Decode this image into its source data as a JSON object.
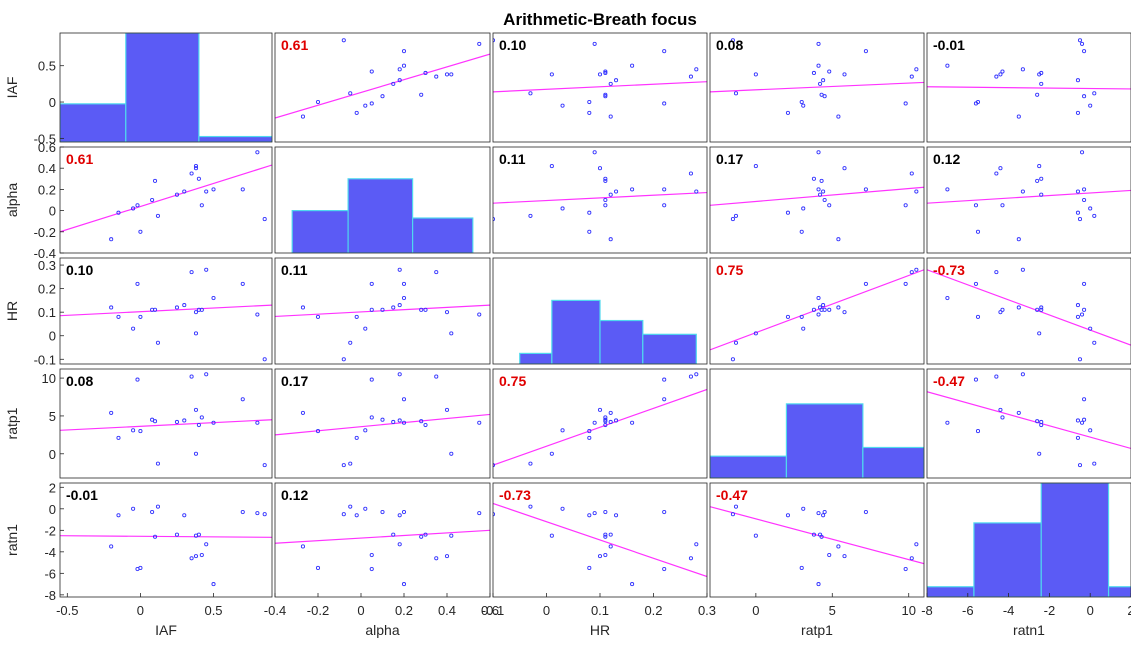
{
  "chart_data": {
    "type": "scatter_matrix",
    "title": "Arithmetic-Breath focus",
    "variables": [
      "IAF",
      "alpha",
      "HR",
      "ratp1",
      "ratn1"
    ],
    "x_ranges": [
      [
        -0.55,
        0.9
      ],
      [
        -0.4,
        0.6
      ],
      [
        -0.1,
        0.3
      ],
      [
        -3,
        11
      ],
      [
        -8,
        2
      ]
    ],
    "y_ranges": [
      [
        -0.55,
        0.95
      ],
      [
        -0.4,
        0.6
      ],
      [
        -0.12,
        0.33
      ],
      [
        -3.2,
        11.2
      ],
      [
        -8.2,
        2.4
      ]
    ],
    "x_ticks": [
      [
        -0.5,
        0,
        0.5
      ],
      [
        -0.4,
        -0.2,
        0,
        0.2,
        0.4,
        0.6
      ],
      [
        -0.1,
        0,
        0.1,
        0.2,
        0.3
      ],
      [
        0,
        5,
        10
      ],
      [
        -8,
        -6,
        -4,
        -2,
        0,
        2
      ]
    ],
    "x_tick_labels": [
      [
        "-0.5",
        "0",
        "0.5"
      ],
      [
        "-0.4",
        "-0.2",
        "0",
        "0.2",
        "0.4",
        "0.6"
      ],
      [
        "-0.1",
        "0",
        "0.1",
        "0.2",
        "0.3"
      ],
      [
        "0",
        "5",
        "10"
      ],
      [
        "-8",
        "-6",
        "-4",
        "-2",
        "0",
        "2"
      ]
    ],
    "y_ticks": [
      [
        -0.5,
        0,
        0.5
      ],
      [
        -0.4,
        -0.2,
        0,
        0.2,
        0.4,
        0.6
      ],
      [
        -0.1,
        0,
        0.1,
        0.2,
        0.3
      ],
      [
        0,
        5,
        10
      ],
      [
        -8,
        -6,
        -4,
        -2,
        0,
        2
      ]
    ],
    "y_tick_labels": [
      [
        "-0.5",
        "0",
        "0.5"
      ],
      [
        "-0.4",
        "-0.2",
        "0",
        "0.2",
        "0.4",
        "0.6"
      ],
      [
        "-0.1",
        "0",
        "0.1",
        "0.2",
        "0.3"
      ],
      [
        "0",
        "5",
        "10"
      ],
      [
        "-8",
        "-6",
        "-4",
        "-2",
        "0",
        "2"
      ]
    ],
    "correlations": [
      [
        null,
        "0.61",
        "0.10",
        "0.08",
        "-0.01"
      ],
      [
        "0.61",
        null,
        "0.11",
        "0.17",
        "0.12"
      ],
      [
        "0.10",
        "0.11",
        null,
        "0.75",
        "-0.73"
      ],
      [
        "0.08",
        "0.17",
        "0.75",
        null,
        "-0.47"
      ],
      [
        "-0.01",
        "0.12",
        "-0.73",
        "-0.47",
        null
      ]
    ],
    "significant": [
      [
        false,
        true,
        false,
        false,
        false
      ],
      [
        true,
        false,
        false,
        false,
        false
      ],
      [
        false,
        false,
        false,
        true,
        true
      ],
      [
        false,
        false,
        true,
        false,
        true
      ],
      [
        false,
        false,
        true,
        true,
        false
      ]
    ],
    "histograms": [
      {
        "edges": [
          -0.55,
          -0.1,
          0.4,
          0.9
        ],
        "fractions": [
          0.35,
          1.0,
          0.05
        ]
      },
      {
        "edges": [
          -0.32,
          -0.06,
          0.24,
          0.52
        ],
        "fractions": [
          0.4,
          0.7,
          0.33
        ]
      },
      {
        "edges": [
          -0.05,
          0.01,
          0.1,
          0.18,
          0.28
        ],
        "fractions": [
          0.1,
          0.6,
          0.41,
          0.28
        ]
      },
      {
        "edges": [
          -3,
          2,
          7,
          11,
          12
        ],
        "fractions": [
          0.2,
          0.68,
          0.28,
          0.04
        ]
      },
      {
        "edges": [
          -8.2,
          -5.7,
          -2.4,
          0.9,
          2.4
        ],
        "fractions": [
          0.09,
          0.65,
          1.0,
          0.09
        ]
      }
    ],
    "samples": [
      {
        "IAF": -0.2,
        "alpha": -0.27,
        "HR": 0.12,
        "ratp1": 5.4,
        "ratn1": -3.5
      },
      {
        "IAF": -0.15,
        "alpha": -0.02,
        "HR": 0.08,
        "ratp1": 2.1,
        "ratn1": -0.6
      },
      {
        "IAF": -0.05,
        "alpha": 0.02,
        "HR": 0.03,
        "ratp1": 3.1,
        "ratn1": 0.0
      },
      {
        "IAF": 0.0,
        "alpha": -0.2,
        "HR": 0.08,
        "ratp1": 3.0,
        "ratn1": -5.5
      },
      {
        "IAF": -0.02,
        "alpha": 0.05,
        "HR": 0.22,
        "ratp1": 9.8,
        "ratn1": -5.6
      },
      {
        "IAF": 0.08,
        "alpha": 0.1,
        "HR": 0.11,
        "ratp1": 4.5,
        "ratn1": -0.3
      },
      {
        "IAF": 0.1,
        "alpha": 0.28,
        "HR": 0.11,
        "ratp1": 4.3,
        "ratn1": -2.6
      },
      {
        "IAF": 0.12,
        "alpha": -0.05,
        "HR": -0.03,
        "ratp1": -1.3,
        "ratn1": 0.2
      },
      {
        "IAF": 0.25,
        "alpha": 0.15,
        "HR": 0.12,
        "ratp1": 4.2,
        "ratn1": -2.4
      },
      {
        "IAF": 0.3,
        "alpha": 0.18,
        "HR": 0.13,
        "ratp1": 4.4,
        "ratn1": -0.6
      },
      {
        "IAF": 0.35,
        "alpha": 0.35,
        "HR": 0.27,
        "ratp1": 10.2,
        "ratn1": -4.6
      },
      {
        "IAF": 0.38,
        "alpha": 0.4,
        "HR": 0.1,
        "ratp1": 5.8,
        "ratn1": -4.4
      },
      {
        "IAF": 0.4,
        "alpha": 0.3,
        "HR": 0.11,
        "ratp1": 3.8,
        "ratn1": -2.4
      },
      {
        "IAF": 0.42,
        "alpha": 0.05,
        "HR": 0.11,
        "ratp1": 4.8,
        "ratn1": -4.3
      },
      {
        "IAF": 0.45,
        "alpha": 0.18,
        "HR": 0.28,
        "ratp1": 10.5,
        "ratn1": -3.3
      },
      {
        "IAF": 0.5,
        "alpha": 0.2,
        "HR": 0.16,
        "ratp1": 4.1,
        "ratn1": -7.0
      },
      {
        "IAF": 0.38,
        "alpha": 0.42,
        "HR": 0.01,
        "ratp1": 0.0,
        "ratn1": -2.5
      },
      {
        "IAF": 0.7,
        "alpha": 0.2,
        "HR": 0.22,
        "ratp1": 7.2,
        "ratn1": -0.3
      },
      {
        "IAF": 0.8,
        "alpha": 0.55,
        "HR": 0.09,
        "ratp1": 4.1,
        "ratn1": -0.4
      },
      {
        "IAF": 0.85,
        "alpha": -0.08,
        "HR": -0.1,
        "ratp1": -1.5,
        "ratn1": -0.5
      }
    ],
    "fit_lines": [
      [
        null,
        [
          -0.22,
          0.66
        ],
        [
          0.14,
          0.28
        ],
        [
          0.14,
          0.27
        ],
        [
          0.21,
          0.18
        ]
      ],
      [
        [
          -0.2,
          0.43
        ],
        null,
        [
          0.07,
          0.17
        ],
        [
          0.05,
          0.22
        ],
        [
          0.07,
          0.19
        ]
      ],
      [
        [
          0.085,
          0.13
        ],
        [
          0.082,
          0.13
        ],
        null,
        [
          -0.06,
          0.28
        ],
        [
          0.28,
          -0.04
        ]
      ],
      [
        [
          3.1,
          4.5
        ],
        [
          2.5,
          5.2
        ],
        [
          -1.5,
          8.5
        ],
        null,
        [
          8.2,
          0.7
        ]
      ],
      [
        [
          -2.5,
          -2.65
        ],
        [
          -3.2,
          -2.0
        ],
        [
          0.5,
          -6.3
        ],
        [
          0.2,
          -5.1
        ],
        null
      ]
    ],
    "colors": {
      "bar_fill": "#5b5bf5",
      "bar_edge": "#4fd8ee",
      "fit_line": "#ff33ff",
      "point": "#3333ff",
      "significant_text": "#e00000",
      "normal_text": "#000000"
    }
  }
}
